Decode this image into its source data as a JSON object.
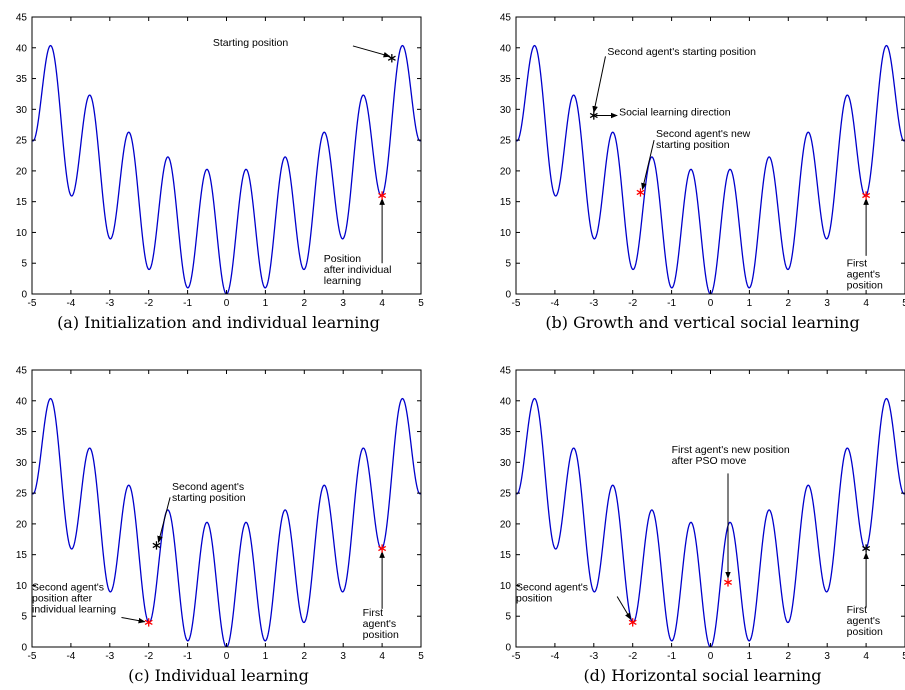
{
  "figure": {
    "curve_color": "#0000cc",
    "marker_black": "#000000",
    "marker_red": "#ff0000"
  },
  "chart_data": [
    {
      "type": "line",
      "caption": "(a) Initialization and individual learning",
      "function": "x^2 + 10 - 10*cos(2*pi*x)",
      "xlim": [
        -5,
        5
      ],
      "ylim": [
        0,
        45
      ],
      "xticks": [
        -5,
        -4,
        -3,
        -2,
        -1,
        0,
        1,
        2,
        3,
        4,
        5
      ],
      "yticks": [
        0,
        5,
        10,
        15,
        20,
        25,
        30,
        35,
        40,
        45
      ],
      "markers": [
        {
          "x": 4.25,
          "y": 38.3,
          "color": "black"
        },
        {
          "x": 4.0,
          "y": 16.0,
          "color": "red"
        }
      ],
      "annotations": [
        {
          "lines": [
            "Starting position"
          ],
          "text_x": -0.35,
          "text_y": 40.3,
          "anchor": "start",
          "arrow_from": [
            3.25,
            40.3
          ],
          "arrow_to": [
            4.2,
            38.6
          ]
        },
        {
          "lines": [
            "Position",
            "after individual",
            "learning"
          ],
          "text_x": 2.5,
          "text_y": 5.2,
          "anchor": "start",
          "arrow_from": [
            4.0,
            5.0
          ],
          "arrow_to": [
            4.0,
            15.5
          ]
        }
      ]
    },
    {
      "type": "line",
      "caption": "(b) Growth and vertical social learning",
      "function": "x^2 + 10 - 10*cos(2*pi*x)",
      "xlim": [
        -5,
        5
      ],
      "ylim": [
        0,
        45
      ],
      "xticks": [
        -5,
        -4,
        -3,
        -2,
        -1,
        0,
        1,
        2,
        3,
        4,
        5
      ],
      "yticks": [
        0,
        5,
        10,
        15,
        20,
        25,
        30,
        35,
        40,
        45
      ],
      "markers": [
        {
          "x": -3.0,
          "y": 29.0,
          "color": "black"
        },
        {
          "x": -1.8,
          "y": 16.5,
          "color": "red"
        },
        {
          "x": 4.0,
          "y": 16.0,
          "color": "red"
        }
      ],
      "annotations": [
        {
          "lines": [
            "Second agent's starting position"
          ],
          "text_x": -2.65,
          "text_y": 38.8,
          "anchor": "start",
          "arrow_from": [
            -2.7,
            38.6
          ],
          "arrow_to": [
            -3.0,
            29.5
          ]
        },
        {
          "lines": [
            "Social learning direction"
          ],
          "text_x": -2.35,
          "text_y": 29.0,
          "anchor": "start",
          "arrow_from": [
            -2.95,
            29.0
          ],
          "arrow_to": [
            -2.4,
            29.0
          ]
        },
        {
          "lines": [
            "Second agent's new",
            "starting position"
          ],
          "text_x": -1.4,
          "text_y": 25.5,
          "anchor": "start",
          "arrow_from": [
            -1.45,
            25.0
          ],
          "arrow_to": [
            -1.75,
            17.0
          ]
        },
        {
          "lines": [
            "First",
            "agent's",
            "position"
          ],
          "text_x": 3.5,
          "text_y": 4.5,
          "anchor": "start",
          "arrow_from": [
            4.0,
            6.2
          ],
          "arrow_to": [
            4.0,
            15.5
          ]
        }
      ]
    },
    {
      "type": "line",
      "caption": "(c) Individual learning",
      "function": "x^2 + 10 - 10*cos(2*pi*x)",
      "xlim": [
        -5,
        5
      ],
      "ylim": [
        0,
        45
      ],
      "xticks": [
        -5,
        -4,
        -3,
        -2,
        -1,
        0,
        1,
        2,
        3,
        4,
        5
      ],
      "yticks": [
        0,
        5,
        10,
        15,
        20,
        25,
        30,
        35,
        40,
        45
      ],
      "markers": [
        {
          "x": -1.8,
          "y": 16.5,
          "color": "black"
        },
        {
          "x": -2.0,
          "y": 4.0,
          "color": "red"
        },
        {
          "x": 4.0,
          "y": 16.0,
          "color": "red"
        }
      ],
      "annotations": [
        {
          "lines": [
            "Second agent's",
            "starting position"
          ],
          "text_x": -1.4,
          "text_y": 25.5,
          "anchor": "start",
          "arrow_from": [
            -1.45,
            24.3
          ],
          "arrow_to": [
            -1.75,
            17.0
          ]
        },
        {
          "lines": [
            "Second agent's",
            "position after",
            "individual learning"
          ],
          "text_x": -5.0,
          "text_y": 9.2,
          "anchor": "start",
          "arrow_from": [
            -2.7,
            4.8
          ],
          "arrow_to": [
            -2.1,
            4.1
          ]
        },
        {
          "lines": [
            "First",
            "agent's",
            "position"
          ],
          "text_x": 3.5,
          "text_y": 5.0,
          "anchor": "start",
          "arrow_from": [
            4.0,
            6.2
          ],
          "arrow_to": [
            4.0,
            15.5
          ]
        }
      ]
    },
    {
      "type": "line",
      "caption": "(d) Horizontal social learning",
      "function": "x^2 + 10 - 10*cos(2*pi*x)",
      "xlim": [
        -5,
        5
      ],
      "ylim": [
        0,
        45
      ],
      "xticks": [
        -5,
        -4,
        -3,
        -2,
        -1,
        0,
        1,
        2,
        3,
        4,
        5
      ],
      "yticks": [
        0,
        5,
        10,
        15,
        20,
        25,
        30,
        35,
        40,
        45
      ],
      "markers": [
        {
          "x": 0.45,
          "y": 10.5,
          "color": "red"
        },
        {
          "x": -2.0,
          "y": 4.0,
          "color": "red"
        },
        {
          "x": 4.0,
          "y": 16.0,
          "color": "black"
        }
      ],
      "annotations": [
        {
          "lines": [
            "First agent's new position",
            "after PSO move"
          ],
          "text_x": -1.0,
          "text_y": 31.5,
          "anchor": "start",
          "arrow_from": [
            0.45,
            28.2
          ],
          "arrow_to": [
            0.45,
            11.2
          ]
        },
        {
          "lines": [
            "Second agent's",
            "position"
          ],
          "text_x": -5.0,
          "text_y": 9.2,
          "anchor": "start",
          "arrow_from": [
            -2.4,
            8.2
          ],
          "arrow_to": [
            -2.05,
            4.5
          ]
        },
        {
          "lines": [
            "First",
            "agent's",
            "position"
          ],
          "text_x": 3.5,
          "text_y": 5.5,
          "anchor": "start",
          "arrow_from": [
            4.0,
            6.5
          ],
          "arrow_to": [
            4.0,
            15.3
          ]
        }
      ]
    }
  ]
}
